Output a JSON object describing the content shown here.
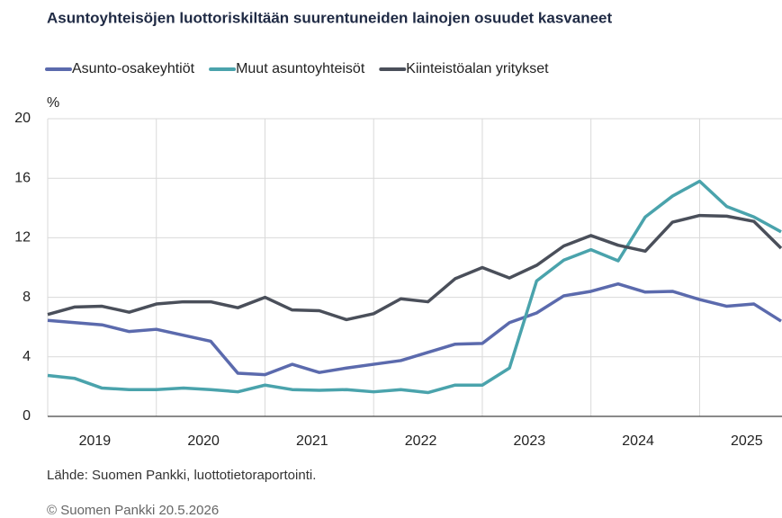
{
  "chart_data": {
    "type": "line",
    "title": "Asuntoyhteisöjen luottoriskiltään suurentuneiden lainojen osuudet kasvaneet",
    "y_label": "%",
    "source": "Lähde: Suomen Pankki, luottotietoraportointi.",
    "copyright": "© Suomen Pankki 20.5.2026",
    "x": [
      2019,
      2019.25,
      2019.5,
      2019.75,
      2020,
      2020.25,
      2020.5,
      2020.75,
      2021,
      2021.25,
      2021.5,
      2021.75,
      2022,
      2022.25,
      2022.5,
      2022.75,
      2023,
      2023.25,
      2023.5,
      2023.75,
      2024,
      2024.25,
      2024.5,
      2024.75,
      2025,
      2025.25,
      2025.5,
      2025.75
    ],
    "xlim": [
      2019,
      2025.75
    ],
    "xticks": [
      2019,
      2020,
      2021,
      2022,
      2023,
      2024,
      2025
    ],
    "ylim": [
      0,
      20
    ],
    "yticks": [
      0,
      4,
      8,
      12,
      16,
      20
    ],
    "grid": true,
    "legend": "top",
    "series": [
      {
        "name": "Asunto-osakeyhtiöt",
        "color": "#5b6aad",
        "values": [
          6.45,
          6.3,
          6.15,
          5.7,
          5.85,
          5.45,
          5.05,
          2.9,
          2.8,
          3.5,
          2.95,
          3.25,
          3.5,
          3.75,
          4.3,
          4.85,
          4.9,
          6.3,
          6.95,
          8.1,
          8.4,
          8.9,
          8.35,
          8.4,
          7.85,
          7.4,
          7.55,
          6.4
        ]
      },
      {
        "name": "Muut asuntoyhteisöt",
        "color": "#4aa3ac",
        "values": [
          2.75,
          2.55,
          1.9,
          1.8,
          1.8,
          1.9,
          1.8,
          1.65,
          2.1,
          1.8,
          1.75,
          1.8,
          1.65,
          1.8,
          1.6,
          2.1,
          2.1,
          3.25,
          9.1,
          10.5,
          11.2,
          10.45,
          13.4,
          14.8,
          15.8,
          14.1,
          13.4,
          12.4
        ]
      },
      {
        "name": "Kiinteistöalan yritykset",
        "color": "#4a4f5a",
        "values": [
          6.85,
          7.35,
          7.4,
          7.0,
          7.55,
          7.7,
          7.7,
          7.3,
          8.0,
          7.15,
          7.1,
          6.5,
          6.9,
          7.9,
          7.7,
          9.25,
          10.0,
          9.3,
          10.15,
          11.45,
          12.15,
          11.5,
          11.1,
          13.05,
          13.5,
          13.45,
          13.1,
          11.3
        ]
      }
    ]
  }
}
